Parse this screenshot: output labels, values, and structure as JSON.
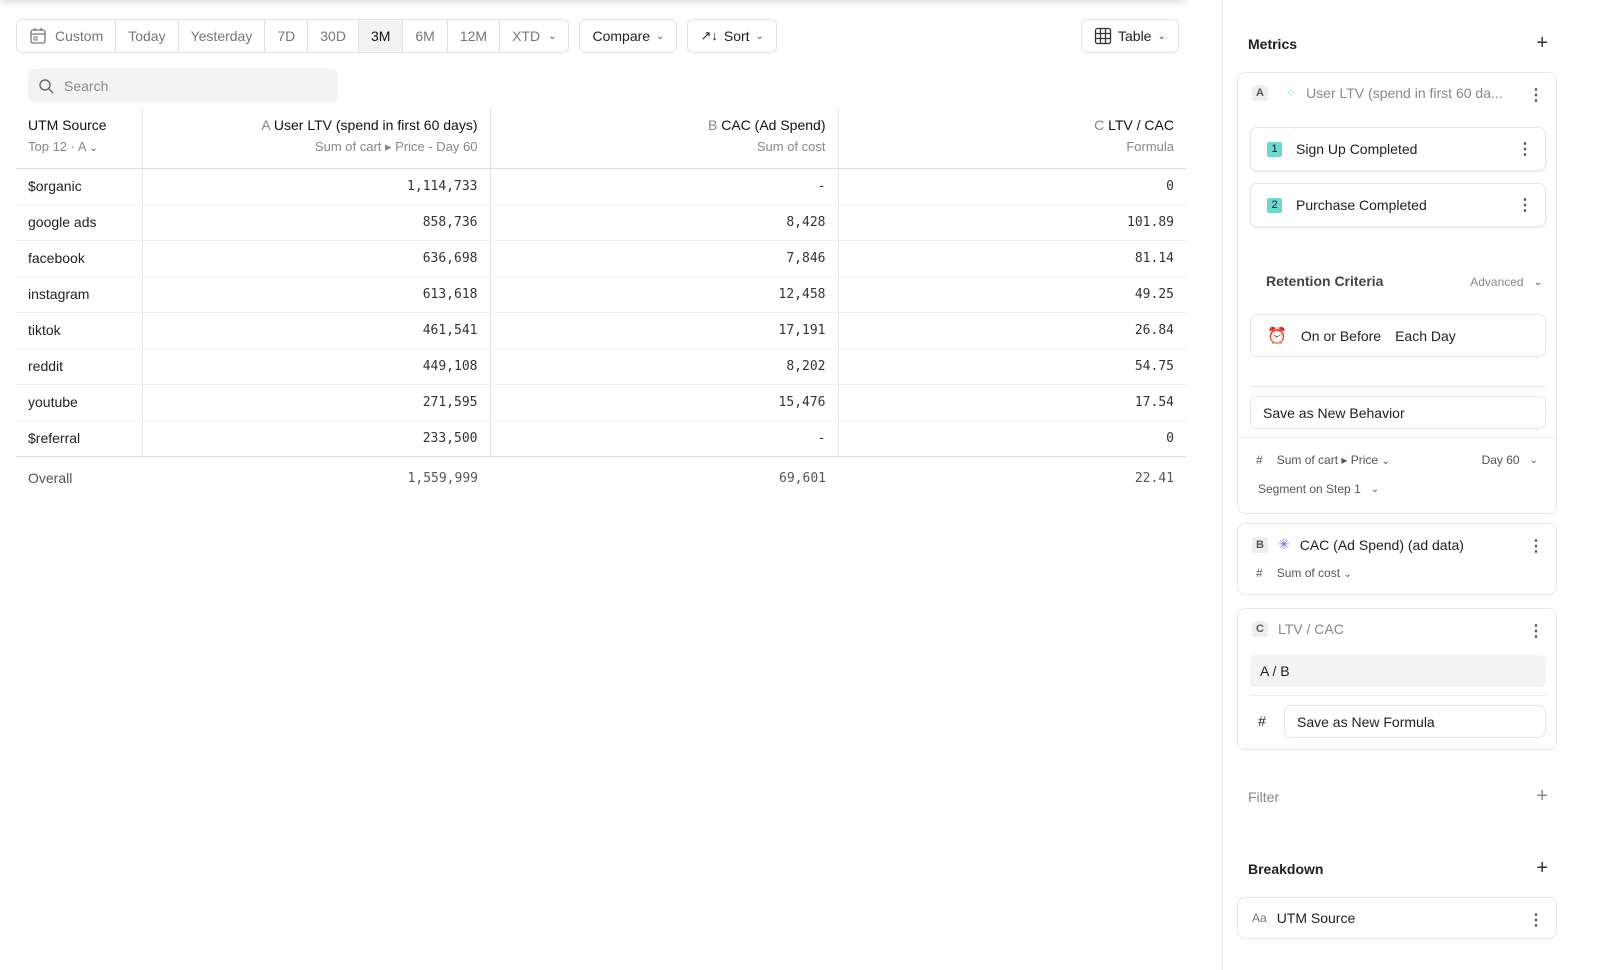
{
  "toolbar": {
    "dates": [
      "Custom",
      "Today",
      "Yesterday",
      "7D",
      "30D",
      "3M",
      "6M",
      "12M",
      "XTD"
    ],
    "active": "3M",
    "compare": "Compare",
    "sort": "Sort",
    "view": "Table"
  },
  "search": {
    "placeholder": "Search"
  },
  "table": {
    "col0": {
      "title": "UTM Source",
      "sub": "Top 12 · A"
    },
    "cols": [
      {
        "letter": "A",
        "title": "User LTV (spend in first 60 days)",
        "sub": "Sum of cart ▸ Price - Day 60"
      },
      {
        "letter": "B",
        "title": "CAC (Ad Spend)",
        "sub": "Sum of cost"
      },
      {
        "letter": "C",
        "title": "LTV / CAC",
        "sub": "Formula"
      }
    ],
    "rows": [
      [
        "$organic",
        "1,114,733",
        "-",
        "0"
      ],
      [
        "google ads",
        "858,736",
        "8,428",
        "101.89"
      ],
      [
        "facebook",
        "636,698",
        "7,846",
        "81.14"
      ],
      [
        "instagram",
        "613,618",
        "12,458",
        "49.25"
      ],
      [
        "tiktok",
        "461,541",
        "17,191",
        "26.84"
      ],
      [
        "reddit",
        "449,108",
        "8,202",
        "54.75"
      ],
      [
        "youtube",
        "271,595",
        "15,476",
        "17.54"
      ],
      [
        "$referral",
        "233,500",
        "-",
        "0"
      ]
    ],
    "overall": [
      "Overall",
      "1,559,999",
      "69,601",
      "22.41"
    ]
  },
  "panel": {
    "metrics": "Metrics",
    "a": {
      "letter": "A",
      "name": "User LTV (spend in first 60 da...",
      "steps": [
        {
          "n": "1",
          "label": "Sign Up Completed"
        },
        {
          "n": "2",
          "label": "Purchase Completed"
        }
      ],
      "retention": "Retention Criteria",
      "advanced": "Advanced",
      "on_or_before": "On or Before",
      "each_day": "Each Day",
      "save": "Save as New Behavior",
      "hash": "#",
      "measure": "Sum of cart ▸ Price",
      "day": "Day 60",
      "segment": "Segment on Step 1"
    },
    "b": {
      "letter": "B",
      "name": "CAC (Ad Spend) (ad data)",
      "hash": "#",
      "measure": "Sum of cost"
    },
    "c": {
      "letter": "C",
      "name": "LTV / CAC",
      "formula": "A / B",
      "hash": "#",
      "save": "Save as New Formula"
    },
    "filter": "Filter",
    "breakdown": "Breakdown",
    "breakdown_item": {
      "prefix": "Aa",
      "label": "UTM Source"
    }
  }
}
